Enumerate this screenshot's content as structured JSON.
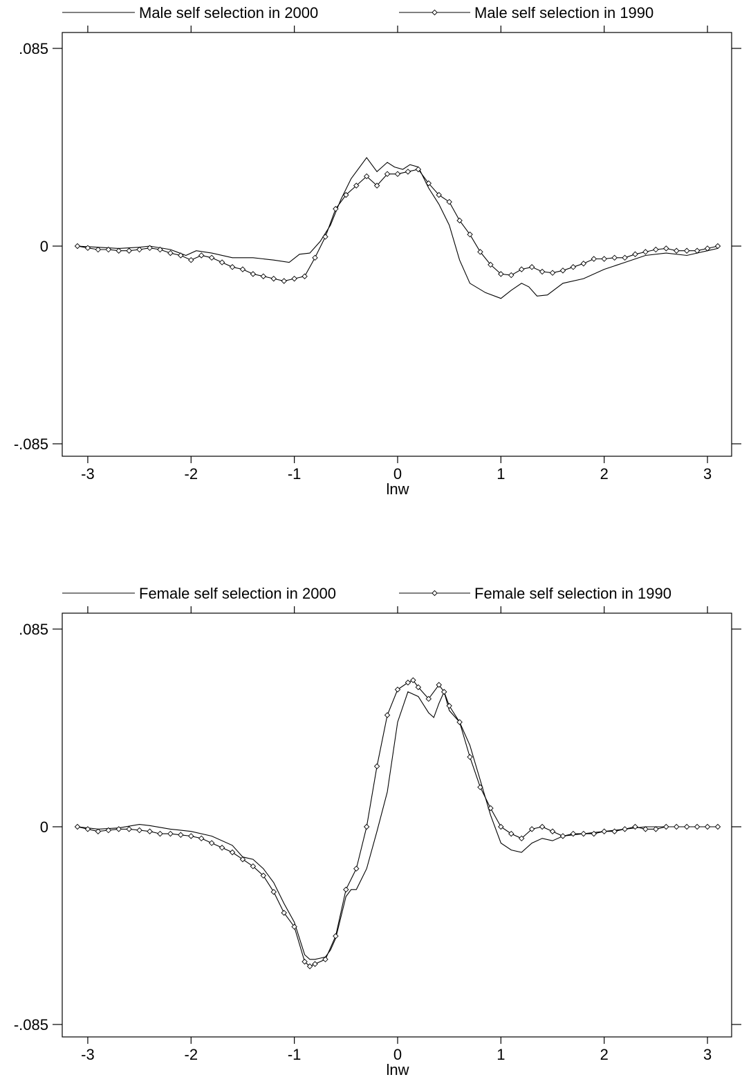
{
  "chart_data": [
    {
      "type": "line",
      "xlabel": "lnw",
      "ylabel": "",
      "xlim": [
        -3.1,
        3.1
      ],
      "ylim": [
        -0.085,
        0.085
      ],
      "xticks": [
        -3,
        -2,
        -1,
        0,
        1,
        2,
        3
      ],
      "xtick_labels": [
        "-3",
        "-2",
        "-1",
        "0",
        "1",
        "2",
        "3"
      ],
      "yticks": [
        0.085,
        0,
        -0.085
      ],
      "ytick_labels": [
        ".085",
        "0",
        "-.085"
      ],
      "grid": false,
      "legend_position": "top",
      "series": [
        {
          "name": "Male self selection in 2000",
          "marker": "none",
          "x": [
            -3.1,
            -2.9,
            -2.7,
            -2.5,
            -2.4,
            -2.2,
            -2.05,
            -1.95,
            -1.8,
            -1.6,
            -1.4,
            -1.2,
            -1.05,
            -0.95,
            -0.85,
            -0.75,
            -0.65,
            -0.55,
            -0.45,
            -0.3,
            -0.2,
            -0.1,
            -0.03,
            0.05,
            0.12,
            0.2,
            0.3,
            0.4,
            0.5,
            0.6,
            0.7,
            0.85,
            1.0,
            1.1,
            1.2,
            1.27,
            1.35,
            1.45,
            1.6,
            1.8,
            2.0,
            2.2,
            2.4,
            2.6,
            2.8,
            3.0,
            3.1
          ],
          "y": [
            0.0,
            -0.0005,
            -0.001,
            -0.0005,
            0.0,
            -0.0015,
            -0.004,
            -0.002,
            -0.003,
            -0.005,
            -0.005,
            -0.006,
            -0.007,
            -0.0035,
            -0.003,
            0.002,
            0.009,
            0.02,
            0.029,
            0.038,
            0.032,
            0.036,
            0.034,
            0.033,
            0.035,
            0.034,
            0.025,
            0.018,
            0.009,
            -0.006,
            -0.016,
            -0.02,
            -0.0225,
            -0.019,
            -0.016,
            -0.0175,
            -0.0215,
            -0.021,
            -0.016,
            -0.014,
            -0.01,
            -0.007,
            -0.004,
            -0.003,
            -0.004,
            -0.002,
            -0.001
          ]
        },
        {
          "name": "Male self selection in 1990",
          "marker": "diamond",
          "x": [
            -3.1,
            -3.0,
            -2.9,
            -2.8,
            -2.7,
            -2.6,
            -2.5,
            -2.4,
            -2.3,
            -2.2,
            -2.1,
            -2.0,
            -1.9,
            -1.8,
            -1.7,
            -1.6,
            -1.5,
            -1.4,
            -1.3,
            -1.2,
            -1.1,
            -1.0,
            -0.9,
            -0.8,
            -0.7,
            -0.6,
            -0.5,
            -0.4,
            -0.3,
            -0.2,
            -0.1,
            0.0,
            0.1,
            0.2,
            0.3,
            0.4,
            0.5,
            0.6,
            0.7,
            0.8,
            0.9,
            1.0,
            1.1,
            1.2,
            1.3,
            1.4,
            1.5,
            1.6,
            1.7,
            1.8,
            1.9,
            2.0,
            2.1,
            2.2,
            2.3,
            2.4,
            2.5,
            2.6,
            2.7,
            2.8,
            2.9,
            3.0,
            3.1
          ],
          "y": [
            0.0,
            -0.0008,
            -0.0015,
            -0.0015,
            -0.002,
            -0.002,
            -0.0015,
            -0.0008,
            -0.0015,
            -0.003,
            -0.004,
            -0.006,
            -0.004,
            -0.005,
            -0.007,
            -0.009,
            -0.01,
            -0.012,
            -0.013,
            -0.014,
            -0.015,
            -0.014,
            -0.013,
            -0.005,
            0.004,
            0.016,
            0.022,
            0.026,
            0.03,
            0.026,
            0.031,
            0.031,
            0.032,
            0.033,
            0.027,
            0.022,
            0.019,
            0.011,
            0.005,
            -0.0025,
            -0.008,
            -0.012,
            -0.0125,
            -0.01,
            -0.009,
            -0.011,
            -0.0115,
            -0.0105,
            -0.009,
            -0.0075,
            -0.0055,
            -0.0055,
            -0.005,
            -0.005,
            -0.0035,
            -0.0025,
            -0.0015,
            -0.001,
            -0.002,
            -0.002,
            -0.002,
            -0.001,
            0.0
          ]
        }
      ]
    },
    {
      "type": "line",
      "xlabel": "lnw",
      "ylabel": "",
      "xlim": [
        -3.1,
        3.1
      ],
      "ylim": [
        -0.085,
        0.085
      ],
      "xticks": [
        -3,
        -2,
        -1,
        0,
        1,
        2,
        3
      ],
      "xtick_labels": [
        "-3",
        "-2",
        "-1",
        "0",
        "1",
        "2",
        "3"
      ],
      "yticks": [
        0.085,
        0,
        -0.085
      ],
      "ytick_labels": [
        ".085",
        "0",
        "-.085"
      ],
      "grid": false,
      "legend_position": "top",
      "series": [
        {
          "name": "Female self selection in 2000",
          "marker": "none",
          "x": [
            -3.1,
            -2.9,
            -2.7,
            -2.5,
            -2.4,
            -2.2,
            -2.0,
            -1.8,
            -1.6,
            -1.5,
            -1.4,
            -1.3,
            -1.2,
            -1.1,
            -1.0,
            -0.9,
            -0.85,
            -0.8,
            -0.75,
            -0.7,
            -0.65,
            -0.6,
            -0.5,
            -0.45,
            -0.4,
            -0.3,
            -0.2,
            -0.1,
            0.0,
            0.1,
            0.2,
            0.3,
            0.35,
            0.4,
            0.45,
            0.5,
            0.6,
            0.7,
            0.8,
            0.9,
            1.0,
            1.1,
            1.2,
            1.3,
            1.4,
            1.5,
            1.6,
            1.8,
            2.0,
            2.2,
            2.4,
            2.6,
            2.8,
            3.0,
            3.1
          ],
          "y": [
            0.0,
            -0.001,
            -0.0005,
            0.001,
            0.0005,
            -0.001,
            -0.002,
            -0.004,
            -0.008,
            -0.013,
            -0.014,
            -0.018,
            -0.024,
            -0.033,
            -0.041,
            -0.055,
            -0.057,
            -0.057,
            -0.0565,
            -0.056,
            -0.053,
            -0.048,
            -0.03,
            -0.027,
            -0.027,
            -0.018,
            -0.002,
            0.015,
            0.045,
            0.058,
            0.056,
            0.049,
            0.047,
            0.053,
            0.058,
            0.05,
            0.045,
            0.035,
            0.02,
            0.005,
            -0.007,
            -0.01,
            -0.011,
            -0.007,
            -0.005,
            -0.006,
            -0.004,
            -0.003,
            -0.002,
            -0.001,
            0.0,
            0.0,
            0.0,
            0.0,
            0.0
          ]
        },
        {
          "name": "Female self selection in 1990",
          "marker": "diamond",
          "x": [
            -3.1,
            -3.0,
            -2.9,
            -2.8,
            -2.7,
            -2.6,
            -2.5,
            -2.4,
            -2.3,
            -2.2,
            -2.1,
            -2.0,
            -1.9,
            -1.8,
            -1.7,
            -1.6,
            -1.5,
            -1.4,
            -1.3,
            -1.2,
            -1.1,
            -1.0,
            -0.9,
            -0.85,
            -0.8,
            -0.7,
            -0.6,
            -0.5,
            -0.4,
            -0.3,
            -0.2,
            -0.1,
            0.0,
            0.1,
            0.15,
            0.2,
            0.3,
            0.4,
            0.45,
            0.5,
            0.6,
            0.7,
            0.8,
            0.9,
            1.0,
            1.1,
            1.2,
            1.3,
            1.4,
            1.5,
            1.6,
            1.7,
            1.8,
            1.9,
            2.0,
            2.1,
            2.2,
            2.3,
            2.4,
            2.5,
            2.6,
            2.7,
            2.8,
            2.9,
            3.0,
            3.1
          ],
          "y": [
            0.0,
            -0.001,
            -0.002,
            -0.0015,
            -0.001,
            -0.001,
            -0.0015,
            -0.002,
            -0.003,
            -0.003,
            -0.0035,
            -0.004,
            -0.005,
            -0.007,
            -0.009,
            -0.011,
            -0.014,
            -0.017,
            -0.021,
            -0.028,
            -0.037,
            -0.043,
            -0.058,
            -0.06,
            -0.059,
            -0.057,
            -0.047,
            -0.027,
            -0.018,
            0.0,
            0.026,
            0.048,
            0.059,
            0.062,
            0.063,
            0.06,
            0.055,
            0.061,
            0.058,
            0.052,
            0.045,
            0.03,
            0.017,
            0.008,
            0.0,
            -0.003,
            -0.005,
            -0.001,
            0.0,
            -0.002,
            -0.004,
            -0.003,
            -0.003,
            -0.003,
            -0.002,
            -0.002,
            -0.001,
            0.0,
            -0.001,
            -0.001,
            0.0,
            0.0,
            0.0,
            0.0,
            0.0,
            0.0
          ]
        }
      ]
    }
  ]
}
